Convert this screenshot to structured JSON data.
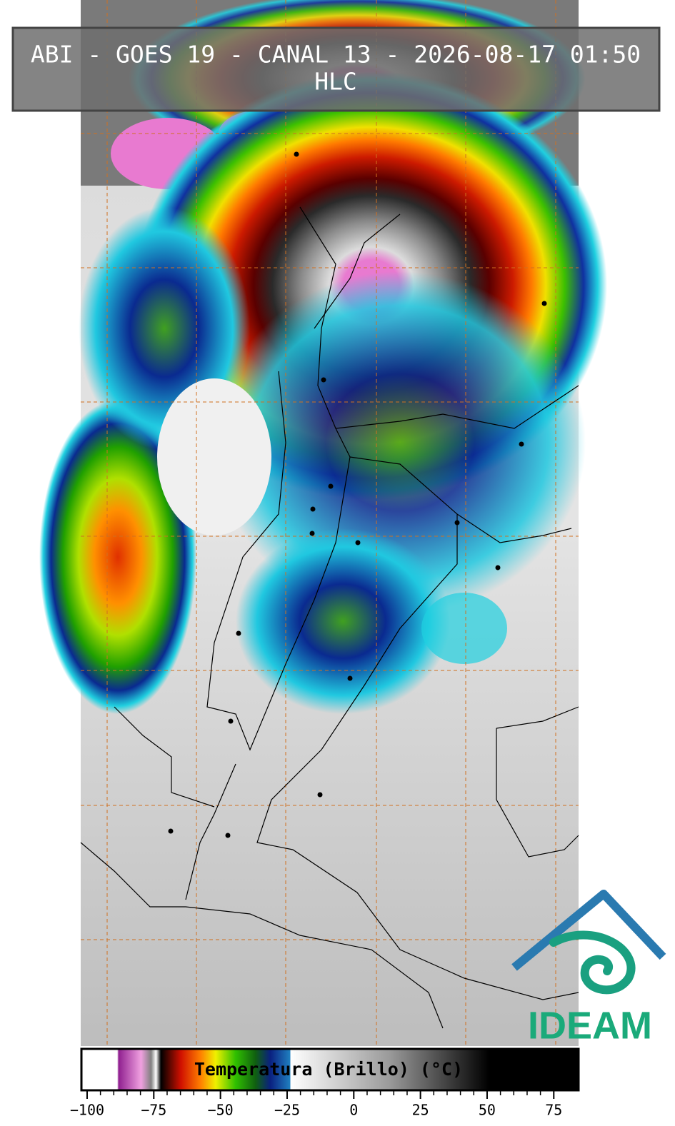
{
  "header": {
    "title": "ABI - GOES 19 - CANAL 13 - 2026-08-17 01:50",
    "subtitle": "HLC"
  },
  "colorbar": {
    "label": "Temperatura (Brillo) (°C)",
    "clim": [
      -102.4,
      84.3
    ],
    "ticks": [
      {
        "value": -100,
        "label": "−100"
      },
      {
        "value": -75,
        "label": "−75"
      },
      {
        "value": -50,
        "label": "−50"
      },
      {
        "value": -25,
        "label": "−25"
      },
      0,
      25,
      50,
      75
    ]
  },
  "logo": {
    "text": "IDEAM"
  }
}
